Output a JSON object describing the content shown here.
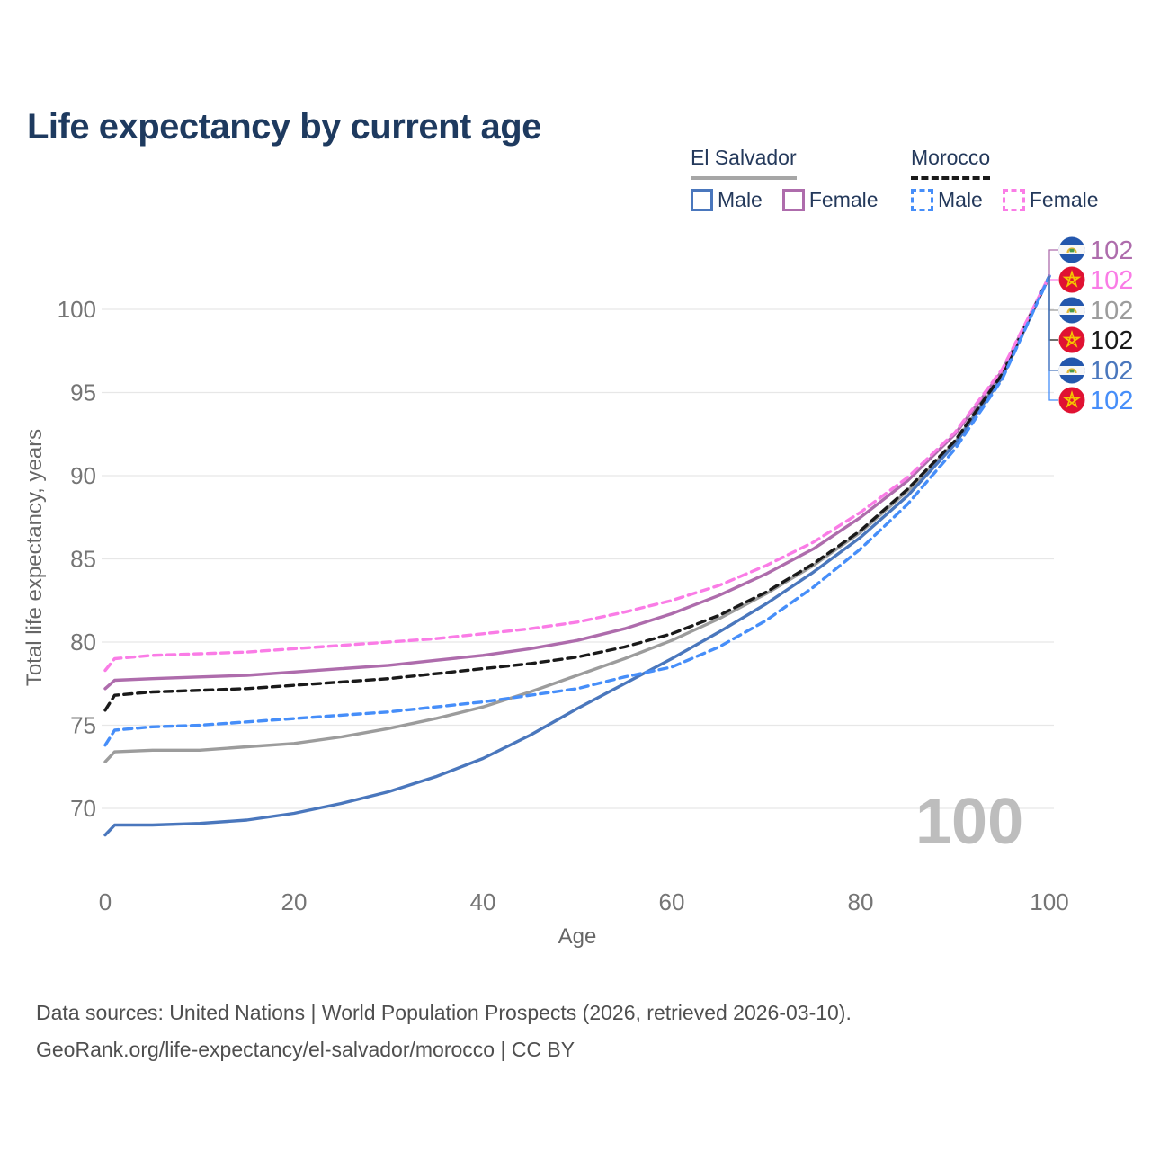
{
  "title": "Life expectancy by current age",
  "colors": {
    "title": "#1e3a5f",
    "legend_text": "#24395b",
    "grid": "#e7e7e7",
    "tick_text": "#757575",
    "axis_title_text": "#666666",
    "watermark": "#bdbdbd",
    "footer_text": "#4f4f4f"
  },
  "legend": {
    "groups": [
      {
        "name": "El Salvador",
        "line_style": "solid",
        "underline_color": "#a6a6a6",
        "items": [
          {
            "label": "Male",
            "color": "#4a77bd"
          },
          {
            "label": "Female",
            "color": "#ae6cac"
          }
        ]
      },
      {
        "name": "Morocco",
        "line_style": "dashed",
        "underline_color": "#1a1a1a",
        "items": [
          {
            "label": "Male",
            "color": "#468ef9"
          },
          {
            "label": "Female",
            "color": "#fa7ce6"
          }
        ]
      }
    ]
  },
  "chart_data": {
    "type": "line",
    "title": "Life expectancy by current age",
    "xlabel": "Age",
    "ylabel": "Total life expectancy, years",
    "x_ticks": [
      0,
      20,
      40,
      60,
      80,
      100
    ],
    "y_ticks": [
      70,
      75,
      80,
      85,
      90,
      95,
      100
    ],
    "xlim": [
      0,
      100
    ],
    "ylim": [
      67.5,
      103
    ],
    "grid": true,
    "watermark": "100",
    "series": [
      {
        "name": "El Salvador Female",
        "country": "El Salvador",
        "sex": "Female",
        "color": "#ae6cac",
        "dash": false,
        "end_label": "102",
        "flag": "el-salvador-flag-icon",
        "points": [
          [
            0,
            77.2
          ],
          [
            1,
            77.7
          ],
          [
            5,
            77.8
          ],
          [
            10,
            77.9
          ],
          [
            15,
            78.0
          ],
          [
            20,
            78.2
          ],
          [
            25,
            78.4
          ],
          [
            30,
            78.6
          ],
          [
            35,
            78.9
          ],
          [
            40,
            79.2
          ],
          [
            45,
            79.6
          ],
          [
            50,
            80.1
          ],
          [
            55,
            80.8
          ],
          [
            60,
            81.7
          ],
          [
            65,
            82.8
          ],
          [
            70,
            84.1
          ],
          [
            75,
            85.6
          ],
          [
            80,
            87.5
          ],
          [
            85,
            89.7
          ],
          [
            90,
            92.5
          ],
          [
            95,
            96.3
          ],
          [
            100,
            102
          ]
        ]
      },
      {
        "name": "Morocco Female",
        "country": "Morocco",
        "sex": "Female",
        "color": "#fa7ce6",
        "dash": true,
        "end_label": "102",
        "flag": "morocco-flag-icon",
        "points": [
          [
            0,
            78.3
          ],
          [
            1,
            79.0
          ],
          [
            5,
            79.2
          ],
          [
            10,
            79.3
          ],
          [
            15,
            79.4
          ],
          [
            20,
            79.6
          ],
          [
            25,
            79.8
          ],
          [
            30,
            80.0
          ],
          [
            35,
            80.2
          ],
          [
            40,
            80.5
          ],
          [
            45,
            80.8
          ],
          [
            50,
            81.2
          ],
          [
            55,
            81.8
          ],
          [
            60,
            82.5
          ],
          [
            65,
            83.4
          ],
          [
            70,
            84.6
          ],
          [
            75,
            86.0
          ],
          [
            80,
            87.8
          ],
          [
            85,
            89.9
          ],
          [
            90,
            92.6
          ],
          [
            95,
            96.4
          ],
          [
            100,
            102
          ]
        ]
      },
      {
        "name": "El Salvador",
        "country": "El Salvador",
        "sex": "Both",
        "color": "#9c9c9c",
        "dash": false,
        "end_label": "102",
        "flag": "el-salvador-flag-icon",
        "points": [
          [
            0,
            72.8
          ],
          [
            1,
            73.4
          ],
          [
            5,
            73.5
          ],
          [
            10,
            73.5
          ],
          [
            15,
            73.7
          ],
          [
            20,
            73.9
          ],
          [
            25,
            74.3
          ],
          [
            30,
            74.8
          ],
          [
            35,
            75.4
          ],
          [
            40,
            76.1
          ],
          [
            45,
            77.0
          ],
          [
            50,
            78.0
          ],
          [
            55,
            79.0
          ],
          [
            60,
            80.1
          ],
          [
            65,
            81.4
          ],
          [
            70,
            82.9
          ],
          [
            75,
            84.6
          ],
          [
            80,
            86.6
          ],
          [
            85,
            89.1
          ],
          [
            90,
            92.0
          ],
          [
            95,
            96.0
          ],
          [
            100,
            102
          ]
        ]
      },
      {
        "name": "Morocco",
        "country": "Morocco",
        "sex": "Both",
        "color": "#1a1a1a",
        "dash": true,
        "end_label": "102",
        "flag": "morocco-flag-icon",
        "points": [
          [
            0,
            75.9
          ],
          [
            1,
            76.8
          ],
          [
            5,
            77.0
          ],
          [
            10,
            77.1
          ],
          [
            15,
            77.2
          ],
          [
            20,
            77.4
          ],
          [
            25,
            77.6
          ],
          [
            30,
            77.8
          ],
          [
            35,
            78.1
          ],
          [
            40,
            78.4
          ],
          [
            45,
            78.7
          ],
          [
            50,
            79.1
          ],
          [
            55,
            79.7
          ],
          [
            60,
            80.5
          ],
          [
            65,
            81.6
          ],
          [
            70,
            83.0
          ],
          [
            75,
            84.7
          ],
          [
            80,
            86.7
          ],
          [
            85,
            89.2
          ],
          [
            90,
            92.1
          ],
          [
            95,
            96.1
          ],
          [
            100,
            102
          ]
        ]
      },
      {
        "name": "El Salvador Male",
        "country": "El Salvador",
        "sex": "Male",
        "color": "#4a77bd",
        "dash": false,
        "end_label": "102",
        "flag": "el-salvador-flag-icon",
        "points": [
          [
            0,
            68.4
          ],
          [
            1,
            69.0
          ],
          [
            5,
            69.0
          ],
          [
            10,
            69.1
          ],
          [
            15,
            69.3
          ],
          [
            20,
            69.7
          ],
          [
            25,
            70.3
          ],
          [
            30,
            71.0
          ],
          [
            35,
            71.9
          ],
          [
            40,
            73.0
          ],
          [
            45,
            74.4
          ],
          [
            50,
            76.0
          ],
          [
            55,
            77.5
          ],
          [
            60,
            79.0
          ],
          [
            65,
            80.6
          ],
          [
            70,
            82.3
          ],
          [
            75,
            84.2
          ],
          [
            80,
            86.3
          ],
          [
            85,
            88.8
          ],
          [
            90,
            91.9
          ],
          [
            95,
            95.9
          ],
          [
            100,
            102
          ]
        ]
      },
      {
        "name": "Morocco Male",
        "country": "Morocco",
        "sex": "Male",
        "color": "#468ef9",
        "dash": true,
        "end_label": "102",
        "flag": "morocco-flag-icon",
        "points": [
          [
            0,
            73.8
          ],
          [
            1,
            74.7
          ],
          [
            5,
            74.9
          ],
          [
            10,
            75.0
          ],
          [
            15,
            75.2
          ],
          [
            20,
            75.4
          ],
          [
            25,
            75.6
          ],
          [
            30,
            75.8
          ],
          [
            35,
            76.1
          ],
          [
            40,
            76.4
          ],
          [
            45,
            76.8
          ],
          [
            50,
            77.2
          ],
          [
            55,
            77.9
          ],
          [
            60,
            78.5
          ],
          [
            65,
            79.7
          ],
          [
            70,
            81.3
          ],
          [
            75,
            83.3
          ],
          [
            80,
            85.6
          ],
          [
            85,
            88.3
          ],
          [
            90,
            91.6
          ],
          [
            95,
            95.8
          ],
          [
            100,
            102
          ]
        ]
      }
    ]
  },
  "footer": {
    "line1": "Data sources: United Nations | World Population Prospects (2026, retrieved 2026-03-10).",
    "line2": "GeoRank.org/life-expectancy/el-salvador/morocco | CC BY"
  }
}
